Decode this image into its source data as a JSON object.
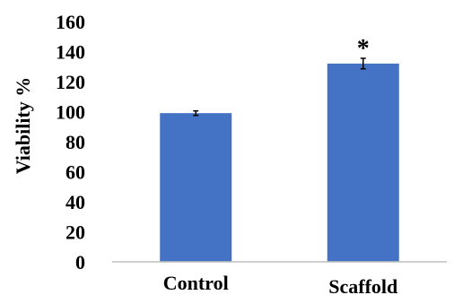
{
  "chart_data": {
    "type": "bar",
    "categories": [
      "Control",
      "Scaffold"
    ],
    "values": [
      99,
      132
    ],
    "errors": [
      1.5,
      3.5
    ],
    "annotations": [
      "",
      "*"
    ],
    "ylabel": "Viability %",
    "xlabel": "",
    "title": "",
    "ylim": [
      0,
      160
    ],
    "yticks": [
      0,
      20,
      40,
      60,
      80,
      100,
      120,
      140,
      160
    ],
    "grid": false,
    "bar_color": "#4472C4",
    "axis_color": "#BFBFBF"
  }
}
